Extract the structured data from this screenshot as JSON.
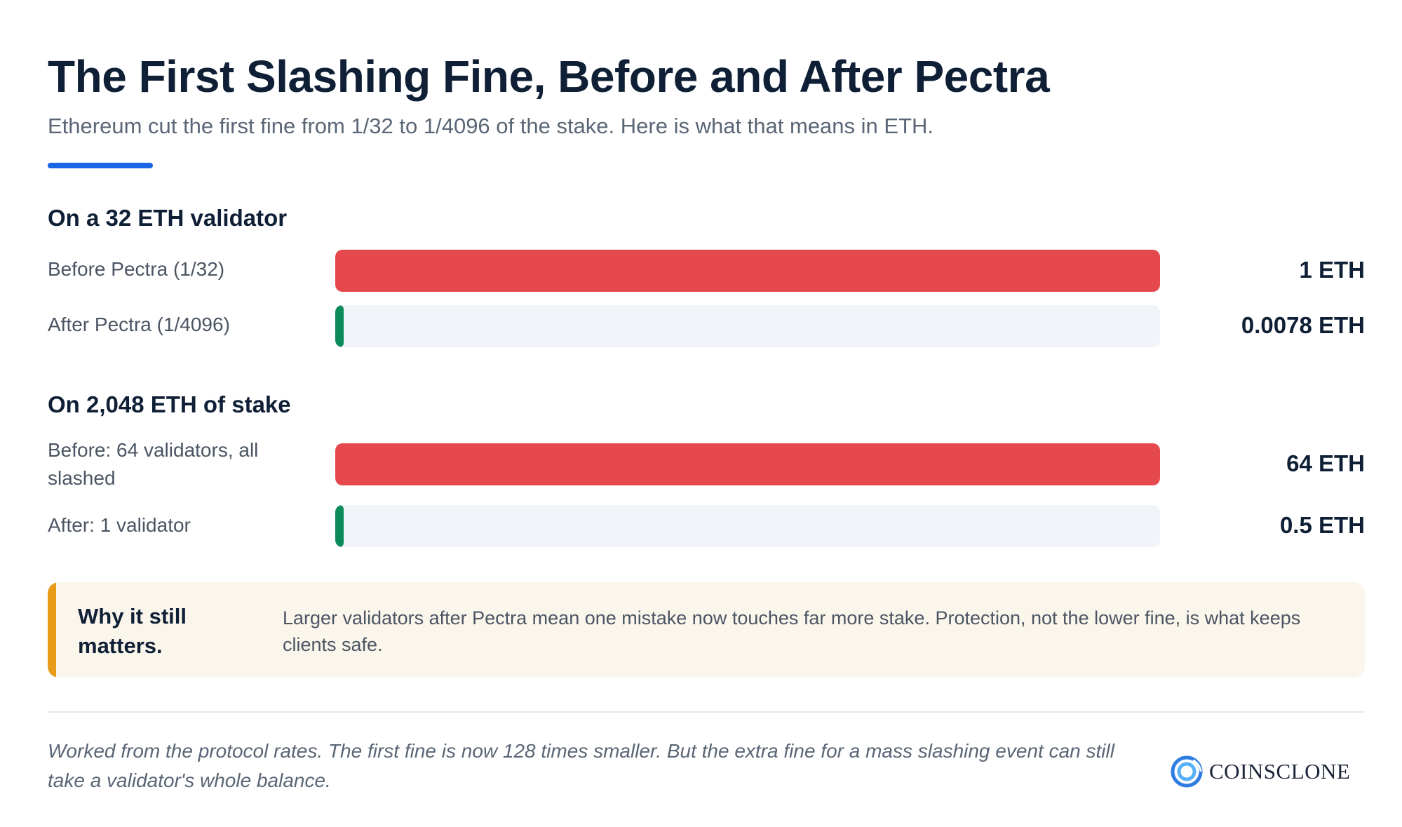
{
  "title": "The First Slashing Fine, Before and After Pectra",
  "subtitle": "Ethereum cut the first fine from 1/32 to 1/4096 of the stake. Here is what that means in ETH.",
  "colors": {
    "accent": "#1a64e6",
    "before": "#e5484d",
    "after": "#0b8a5a",
    "track": "#f1f4f8",
    "callout_bg": "#fbf6ec",
    "callout_accent": "#e89b18"
  },
  "chart_data": [
    {
      "type": "bar",
      "title": "On a 32 ETH validator",
      "categories": [
        "Before Pectra (1/32)",
        "After Pectra (1/4096)"
      ],
      "values": [
        1,
        0.0078
      ],
      "value_labels": [
        "1 ETH",
        "0.0078 ETH"
      ],
      "unit": "ETH",
      "colors": [
        "#e5484d",
        "#0b8a5a"
      ],
      "orientation": "horizontal",
      "grid": false
    },
    {
      "type": "bar",
      "title": "On 2,048 ETH of stake",
      "categories": [
        "Before: 64 validators, all slashed",
        "After: 1 validator"
      ],
      "values": [
        64,
        0.5
      ],
      "value_labels": [
        "64 ETH",
        "0.5 ETH"
      ],
      "unit": "ETH",
      "colors": [
        "#e5484d",
        "#0b8a5a"
      ],
      "orientation": "horizontal",
      "grid": false
    }
  ],
  "callout": {
    "title": "Why it still matters.",
    "text": "Larger validators after Pectra mean one mistake now touches far more stake. Protection, not the lower fine, is what keeps clients safe."
  },
  "footnote": "Worked from the protocol rates. The first fine is now 128 times smaller. But the extra fine for a mass slashing event can still take a validator's whole balance.",
  "logo": {
    "text": "COINSCLONE",
    "icon": "coinsclone-logo-icon"
  }
}
